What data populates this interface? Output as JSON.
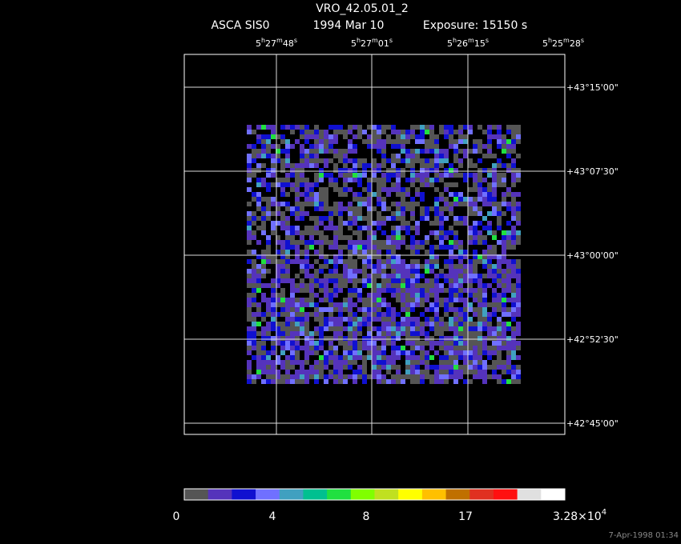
{
  "header": {
    "title": "VRO_42.05.01_2",
    "instrument": "ASCA SIS0",
    "date": "1994 Mar 10",
    "exposure": "Exposure: 15150 s"
  },
  "ra_labels": [
    [
      "5",
      "h",
      "27",
      "m",
      "48",
      "s"
    ],
    [
      "5",
      "h",
      "27",
      "m",
      "01",
      "s"
    ],
    [
      "5",
      "h",
      "26",
      "m",
      "15",
      "s"
    ],
    [
      "5",
      "h",
      "25",
      "m",
      "28",
      "s"
    ]
  ],
  "dec_labels": [
    "+43°15'00\"",
    "+43°07'30\"",
    "+43°00'00\"",
    "+42°52'30\"",
    "+42°45'00\""
  ],
  "colorbar": {
    "colors": [
      "#555555",
      "#5533bb",
      "#1010d0",
      "#7070ff",
      "#40a0c0",
      "#00c090",
      "#20e040",
      "#80ff00",
      "#c0e020",
      "#ffff00",
      "#ffc000",
      "#c07000",
      "#e03020",
      "#ff1010",
      "#e0e0e0",
      "#ffffff"
    ],
    "labels": [
      "0",
      "4",
      "8",
      "17"
    ],
    "max": {
      "mantissa": "3.28×10",
      "exponent": "4"
    }
  },
  "footer": "7-Apr-1998 01:34"
}
